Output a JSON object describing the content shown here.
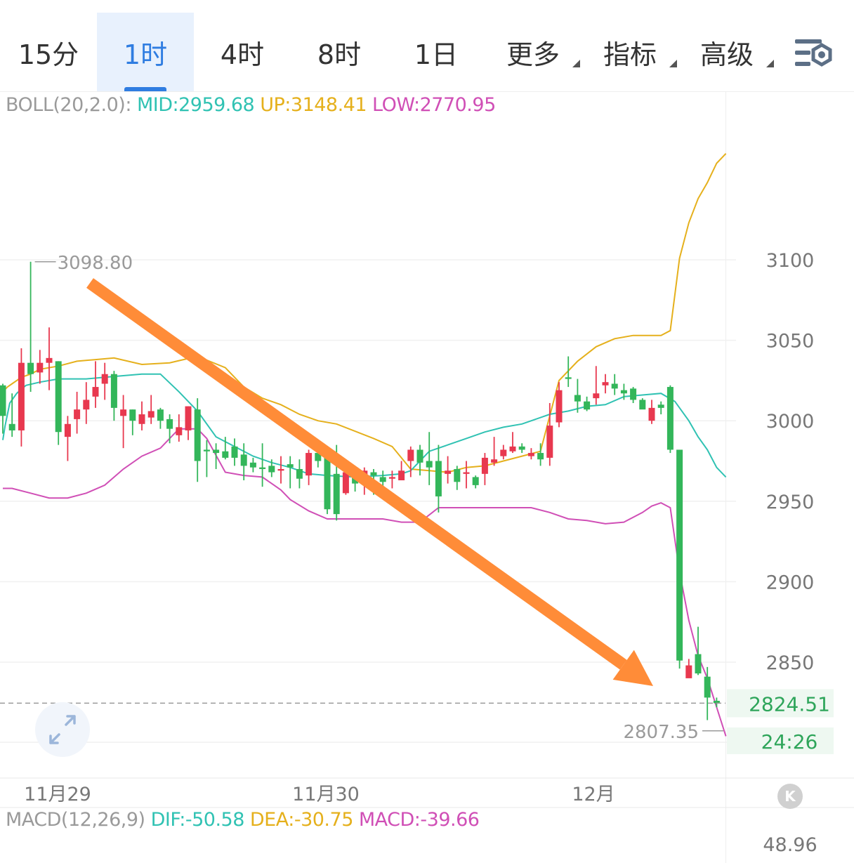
{
  "toolbar": {
    "tabs": [
      {
        "label": "15分",
        "active": false,
        "dropdown": false
      },
      {
        "label": "1时",
        "active": true,
        "dropdown": false
      },
      {
        "label": "4时",
        "active": false,
        "dropdown": false
      },
      {
        "label": "8时",
        "active": false,
        "dropdown": false
      },
      {
        "label": "1日",
        "active": false,
        "dropdown": false
      },
      {
        "label": "更多",
        "active": false,
        "dropdown": true
      },
      {
        "label": "指标",
        "active": false,
        "dropdown": true
      },
      {
        "label": "高级",
        "active": false,
        "dropdown": true
      }
    ],
    "settings_icon": "chart-settings-icon"
  },
  "boll_legend": {
    "name": "BOLL(20,2.0):",
    "mid": "MID:2959.68",
    "up": "UP:3148.41",
    "low": "LOW:2770.95"
  },
  "macd_legend": {
    "name": "MACD(12,26,9)",
    "dif": "DIF:-50.58",
    "dea": "DEA:-30.75",
    "macd": "MACD:-39.66"
  },
  "colors": {
    "up": "#e8384f",
    "down": "#33b65a",
    "mid": "#30c2b3",
    "upper": "#e5b01c",
    "lower": "#d04fb6",
    "arrow": "#ff8c38",
    "price_tag": "#2ea55a"
  },
  "chart_data": {
    "type": "candlestick",
    "x_tick_labels": [
      "11月29",
      "11月30",
      "12月"
    ],
    "y_ticks": [
      3100,
      3050,
      3000,
      2950,
      2900,
      2850
    ],
    "y_tick_labels": [
      "3100",
      "3050",
      "3000",
      "2950",
      "2900",
      "2850"
    ],
    "ylim": [
      2790,
      3160
    ],
    "max_marker": "3098.80",
    "min_marker": "2807.35",
    "last_price": "2824.51",
    "countdown": "24:26",
    "macd_axis_label": "48.96",
    "grid": true,
    "candles": [
      [
        3022,
        3003,
        3023,
        2992
      ],
      [
        2998,
        2994,
        3017,
        2990
      ],
      [
        2994,
        3036,
        3045,
        2984
      ],
      [
        3036,
        3029,
        3098.8,
        3018
      ],
      [
        3030,
        3036,
        3044,
        3023
      ],
      [
        3036,
        3039,
        3058,
        3019
      ],
      [
        3037,
        2993,
        3037,
        2985
      ],
      [
        2990,
        2998,
        3003,
        2975
      ],
      [
        3001,
        3007,
        3018,
        2992
      ],
      [
        3007,
        3013,
        3024,
        2998
      ],
      [
        3015,
        3021,
        3037,
        3008
      ],
      [
        3023,
        3029,
        3036,
        3013
      ],
      [
        3029,
        3008,
        3031,
        3000
      ],
      [
        3003,
        3007,
        3016,
        2983
      ],
      [
        3007,
        3000,
        3007,
        2991
      ],
      [
        2998,
        3004,
        3012,
        2994
      ],
      [
        3002,
        3006,
        3016,
        2998
      ],
      [
        3007,
        3000,
        3008,
        2995
      ],
      [
        3001,
        2995,
        3004,
        2986
      ],
      [
        2991,
        2996,
        3004,
        2987
      ],
      [
        2994,
        3009,
        3009,
        2988
      ],
      [
        3007,
        2975,
        3014,
        2962
      ],
      [
        2982,
        2981,
        2988,
        2965
      ],
      [
        2982,
        2980,
        2986,
        2970
      ],
      [
        2981,
        2977,
        2990,
        2976
      ],
      [
        2984,
        2977,
        2989,
        2972
      ],
      [
        2979,
        2972,
        2986,
        2963
      ],
      [
        2974,
        2971,
        2977,
        2968
      ],
      [
        2971,
        2970,
        2986,
        2959
      ],
      [
        2972,
        2968,
        2976,
        2965
      ],
      [
        2969,
        2970,
        2978,
        2961
      ],
      [
        2973,
        2971,
        2978,
        2958
      ],
      [
        2970,
        2964,
        2976,
        2958
      ],
      [
        2966,
        2980,
        2982,
        2960
      ],
      [
        2980,
        2975,
        2985,
        2971
      ],
      [
        2980,
        2945,
        2981,
        2942
      ],
      [
        2967,
        2942,
        2985,
        2938
      ],
      [
        2955,
        2968,
        2973,
        2954
      ],
      [
        2967,
        2961,
        2968,
        2956
      ],
      [
        2961,
        2969,
        2971,
        2954
      ],
      [
        2968,
        2966,
        2970,
        2954
      ],
      [
        2965,
        2962,
        2969,
        2955
      ],
      [
        2964,
        2965,
        2969,
        2958
      ],
      [
        2963,
        2969,
        2975,
        2963
      ],
      [
        2975,
        2982,
        2984,
        2965
      ],
      [
        2982,
        2974,
        2985,
        2966
      ],
      [
        2975,
        2971,
        2993,
        2960
      ],
      [
        2975,
        2953,
        2985,
        2943
      ],
      [
        2967,
        2969,
        2978,
        2961
      ],
      [
        2970,
        2962,
        2972,
        2957
      ],
      [
        2967,
        2968,
        2975,
        2958
      ],
      [
        2965,
        2960,
        2966,
        2958
      ],
      [
        2967,
        2977,
        2980,
        2960
      ],
      [
        2974,
        2976,
        2990,
        2972
      ],
      [
        2978,
        2982,
        2985,
        2976
      ],
      [
        2981,
        2984,
        2993,
        2980
      ],
      [
        2984,
        2982,
        2986,
        2980
      ],
      [
        2978,
        2980,
        2983,
        2976
      ],
      [
        2980,
        2976,
        2986,
        2972
      ],
      [
        2977,
        2997,
        3011,
        2972
      ],
      [
        2999,
        3019,
        3024,
        2996
      ],
      [
        3027,
        3026,
        3040,
        3021
      ],
      [
        3016,
        3012,
        3026,
        3005
      ],
      [
        3012,
        3007,
        3015,
        3006
      ],
      [
        3014,
        3017,
        3034,
        3010
      ],
      [
        3022,
        3024,
        3029,
        3017
      ],
      [
        3023,
        3020,
        3029,
        3016
      ],
      [
        3019,
        3017,
        3023,
        3013
      ],
      [
        3020,
        3013,
        3021,
        3011
      ],
      [
        3013,
        3007,
        3014,
        3008
      ],
      [
        3000,
        3008,
        3013,
        2998
      ],
      [
        3010,
        3008,
        3012,
        3004
      ],
      [
        3021,
        2982,
        3022,
        2980
      ],
      [
        2982,
        2851,
        2982,
        2846
      ],
      [
        2840,
        2848,
        2852,
        2845
      ],
      [
        2855,
        2843,
        2872,
        2842
      ],
      [
        2841,
        2828,
        2847,
        2814
      ],
      [
        2826,
        2824.51,
        2828,
        2822
      ]
    ],
    "boll_mid": [
      [
        0,
        2988
      ],
      [
        0.25,
        2997
      ],
      [
        0.5,
        3004
      ],
      [
        0.75,
        3011
      ],
      [
        1.0,
        3013
      ],
      [
        1.5,
        3017
      ],
      [
        2.5,
        3022
      ],
      [
        4,
        3024
      ],
      [
        6,
        3026
      ],
      [
        9,
        3026
      ],
      [
        11,
        3027
      ],
      [
        13,
        3028
      ],
      [
        15,
        3029
      ],
      [
        17,
        3029
      ],
      [
        19,
        3018
      ],
      [
        21,
        3006
      ],
      [
        23,
        2990
      ],
      [
        25,
        2984
      ],
      [
        27,
        2978
      ],
      [
        29,
        2974
      ],
      [
        31,
        2971
      ],
      [
        33,
        2967
      ],
      [
        35,
        2966
      ],
      [
        38,
        2965
      ],
      [
        41,
        2966
      ],
      [
        43,
        2967
      ],
      [
        44,
        2969
      ],
      [
        45,
        2975
      ],
      [
        46,
        2981
      ],
      [
        48,
        2985
      ],
      [
        50,
        2989
      ],
      [
        52,
        2993
      ],
      [
        54,
        2996
      ],
      [
        56,
        2998
      ],
      [
        59,
        3004
      ],
      [
        61,
        3006
      ],
      [
        63,
        3009
      ],
      [
        65,
        3010
      ],
      [
        67,
        3015
      ],
      [
        69,
        3016
      ],
      [
        71,
        3017
      ],
      [
        72.5,
        3012
      ],
      [
        74,
        3000
      ],
      [
        75,
        2990
      ],
      [
        76,
        2982
      ],
      [
        77,
        2971
      ],
      [
        78,
        2965
      ]
    ],
    "boll_upper": [
      [
        0,
        3018
      ],
      [
        0.5,
        3021
      ],
      [
        1.0,
        3023
      ],
      [
        1.5,
        3025
      ],
      [
        2,
        3027
      ],
      [
        3,
        3029
      ],
      [
        4,
        3032
      ],
      [
        6,
        3034
      ],
      [
        8,
        3037
      ],
      [
        10,
        3038
      ],
      [
        12,
        3039
      ],
      [
        15,
        3035
      ],
      [
        18,
        3036
      ],
      [
        21,
        3040
      ],
      [
        24,
        3033
      ],
      [
        26,
        3021
      ],
      [
        28,
        3014
      ],
      [
        30,
        3010
      ],
      [
        32,
        3004
      ],
      [
        34,
        3000
      ],
      [
        36,
        2998
      ],
      [
        40,
        2989
      ],
      [
        42,
        2984
      ],
      [
        44,
        2970
      ],
      [
        46,
        2969
      ],
      [
        48,
        2968
      ],
      [
        50,
        2971
      ],
      [
        52,
        2972
      ],
      [
        54,
        2975
      ],
      [
        56,
        2978
      ],
      [
        58,
        2981
      ],
      [
        60,
        3025
      ],
      [
        62,
        3037
      ],
      [
        64,
        3046
      ],
      [
        66,
        3051
      ],
      [
        68,
        3053
      ],
      [
        71,
        3053
      ],
      [
        72,
        3056
      ],
      [
        73,
        3101
      ],
      [
        74,
        3123
      ],
      [
        75,
        3138
      ],
      [
        76,
        3148
      ],
      [
        77,
        3160
      ],
      [
        78,
        3166
      ]
    ],
    "boll_lower": [
      [
        0,
        2958
      ],
      [
        1,
        2958
      ],
      [
        3,
        2955
      ],
      [
        5,
        2952
      ],
      [
        7,
        2952
      ],
      [
        9,
        2955
      ],
      [
        11,
        2960
      ],
      [
        13,
        2970
      ],
      [
        15,
        2978
      ],
      [
        17,
        2983
      ],
      [
        19,
        2995
      ],
      [
        21,
        2995
      ],
      [
        22,
        2989
      ],
      [
        24,
        2968
      ],
      [
        26,
        2966
      ],
      [
        28,
        2965
      ],
      [
        29,
        2961
      ],
      [
        30,
        2957
      ],
      [
        31,
        2951
      ],
      [
        33,
        2944
      ],
      [
        35,
        2939
      ],
      [
        37,
        2939
      ],
      [
        41,
        2939
      ],
      [
        43,
        2937
      ],
      [
        45,
        2937
      ],
      [
        47,
        2946
      ],
      [
        49,
        2946
      ],
      [
        52,
        2946
      ],
      [
        55,
        2946
      ],
      [
        57,
        2946
      ],
      [
        59,
        2943
      ],
      [
        61,
        2939
      ],
      [
        63,
        2938
      ],
      [
        65,
        2936
      ],
      [
        67,
        2937
      ],
      [
        69,
        2943
      ],
      [
        70,
        2947
      ],
      [
        71,
        2949
      ],
      [
        72,
        2946
      ],
      [
        73,
        2906
      ],
      [
        74,
        2876
      ],
      [
        75,
        2854
      ],
      [
        76,
        2840
      ],
      [
        77,
        2822
      ],
      [
        78,
        2804
      ]
    ]
  }
}
